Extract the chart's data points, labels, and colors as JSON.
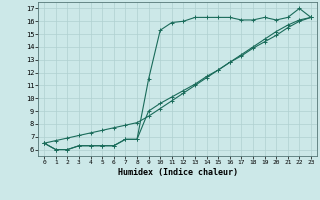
{
  "xlabel": "Humidex (Indice chaleur)",
  "bg_color": "#cce8e8",
  "grid_color": "#b0d0d0",
  "line_color": "#1a6b5a",
  "xlim": [
    -0.5,
    23.5
  ],
  "ylim": [
    5.5,
    17.5
  ],
  "xticks": [
    0,
    1,
    2,
    3,
    4,
    5,
    6,
    7,
    8,
    9,
    10,
    11,
    12,
    13,
    14,
    15,
    16,
    17,
    18,
    19,
    20,
    21,
    22,
    23
  ],
  "yticks": [
    6,
    7,
    8,
    9,
    10,
    11,
    12,
    13,
    14,
    15,
    16,
    17
  ],
  "line1_x": [
    0,
    1,
    2,
    3,
    4,
    5,
    6,
    7,
    8,
    9,
    10,
    11,
    12,
    13,
    14,
    15,
    16,
    17,
    18,
    19,
    20,
    21,
    22,
    23
  ],
  "line1_y": [
    6.5,
    6.0,
    6.0,
    6.3,
    6.3,
    6.3,
    6.3,
    6.8,
    6.8,
    11.5,
    15.3,
    15.9,
    16.0,
    16.3,
    16.3,
    16.3,
    16.3,
    16.1,
    16.1,
    16.3,
    16.1,
    16.3,
    17.0,
    16.3
  ],
  "line2_x": [
    0,
    1,
    2,
    3,
    4,
    5,
    6,
    7,
    8,
    9,
    10,
    11,
    12,
    13,
    14,
    15,
    16,
    17,
    18,
    19,
    20,
    21,
    22,
    23
  ],
  "line2_y": [
    6.5,
    6.7,
    6.9,
    7.1,
    7.3,
    7.5,
    7.7,
    7.9,
    8.1,
    8.6,
    9.2,
    9.8,
    10.4,
    11.0,
    11.6,
    12.2,
    12.8,
    13.4,
    14.0,
    14.6,
    15.2,
    15.7,
    16.1,
    16.3
  ],
  "line3_x": [
    0,
    1,
    2,
    3,
    4,
    5,
    6,
    7,
    8,
    9,
    10,
    11,
    12,
    13,
    14,
    15,
    16,
    17,
    18,
    19,
    20,
    21,
    22,
    23
  ],
  "line3_y": [
    6.5,
    6.0,
    6.0,
    6.3,
    6.3,
    6.3,
    6.3,
    6.8,
    6.8,
    9.0,
    9.6,
    10.1,
    10.6,
    11.1,
    11.7,
    12.2,
    12.8,
    13.3,
    13.9,
    14.4,
    14.9,
    15.5,
    16.0,
    16.3
  ]
}
